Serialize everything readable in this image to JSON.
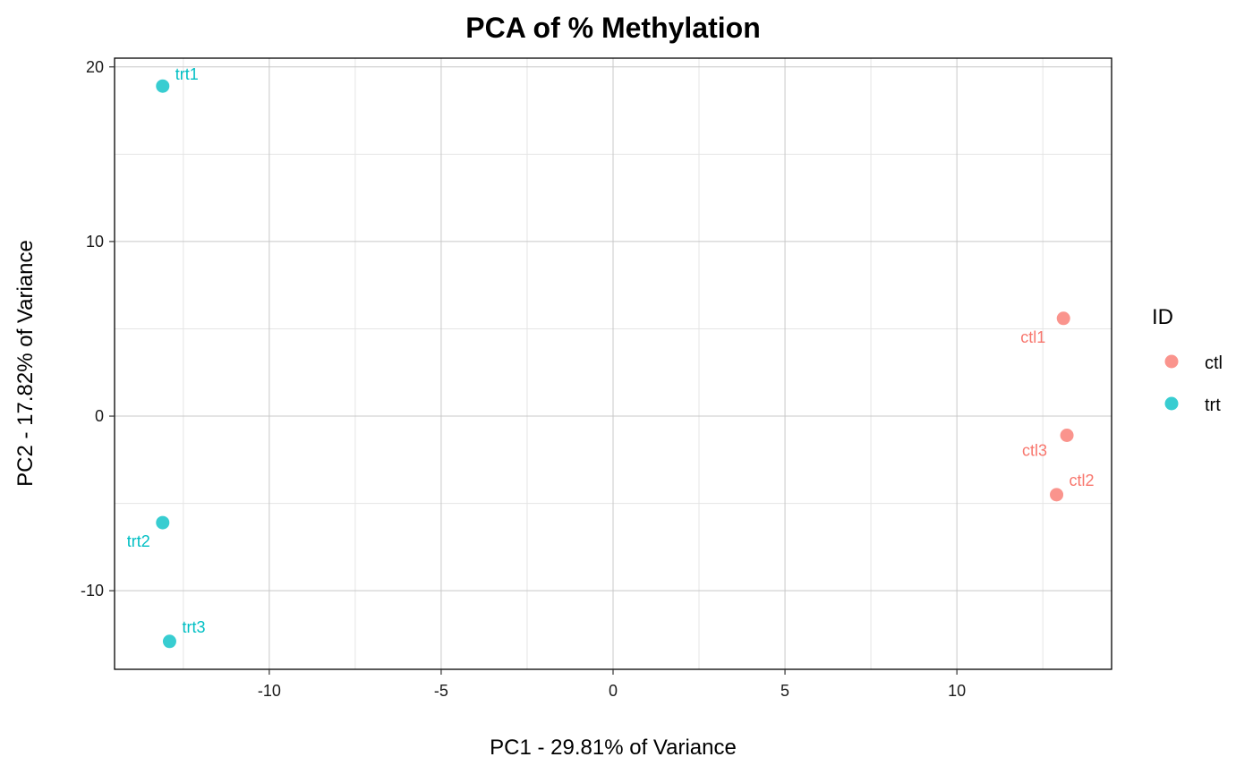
{
  "chart_data": {
    "type": "scatter",
    "title": "PCA of % Methylation",
    "xlabel": "PC1 - 29.81% of Variance",
    "ylabel": "PC2 - 17.82% of Variance",
    "xlim": [
      -14.5,
      14.5
    ],
    "ylim": [
      -14.5,
      20.5
    ],
    "x_ticks": [
      -10,
      -5,
      0,
      5,
      10
    ],
    "x_tick_labels": [
      "-10",
      "-5",
      "0",
      "5",
      "10"
    ],
    "y_ticks": [
      -10,
      0,
      10,
      20
    ],
    "y_tick_labels": [
      "-10",
      "0",
      "10",
      "20"
    ],
    "grid": true,
    "legend": {
      "title": "ID",
      "position": "right",
      "entries": [
        {
          "label": "ctl",
          "color": "#F8766D"
        },
        {
          "label": "trt",
          "color": "#00BFC4"
        }
      ]
    },
    "series": [
      {
        "name": "ctl",
        "color": "#F8766D",
        "points": [
          {
            "label": "ctl1",
            "x": 13.1,
            "y": 5.6
          },
          {
            "label": "ctl2",
            "x": 12.9,
            "y": -4.5
          },
          {
            "label": "ctl3",
            "x": 13.2,
            "y": -1.1
          }
        ]
      },
      {
        "name": "trt",
        "color": "#00BFC4",
        "points": [
          {
            "label": "trt1",
            "x": -13.1,
            "y": 18.9
          },
          {
            "label": "trt2",
            "x": -13.1,
            "y": -6.1
          },
          {
            "label": "trt3",
            "x": -12.9,
            "y": -12.9
          }
        ]
      }
    ]
  }
}
